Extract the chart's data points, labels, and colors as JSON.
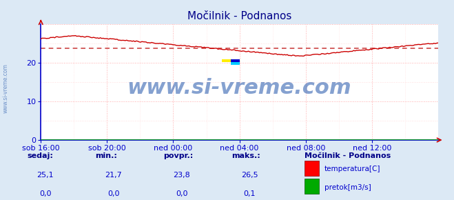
{
  "title": "Močilnik - Podnanos",
  "bg_color": "#dce9f5",
  "plot_bg_color": "#ffffff",
  "grid_color": "#ffaaaa",
  "grid_minor_color": "#ffdddd",
  "spine_color": "#0000cc",
  "x_labels": [
    "sob 16:00",
    "sob 20:00",
    "ned 00:00",
    "ned 04:00",
    "ned 08:00",
    "ned 12:00"
  ],
  "x_ticks_norm": [
    0.0,
    0.1667,
    0.3333,
    0.5,
    0.6667,
    0.8333
  ],
  "ylim": [
    0,
    30
  ],
  "yticks": [
    0,
    10,
    20
  ],
  "avg_line": 23.8,
  "avg_line_color": "#cc4444",
  "avg_line_style": "dotted",
  "temp_color": "#cc0000",
  "flow_color": "#00aa00",
  "watermark": "www.si-vreme.com",
  "watermark_color": "#2255aa",
  "watermark_alpha": 0.55,
  "watermark_fontsize": 22,
  "title_color": "#000088",
  "title_fontsize": 11,
  "tick_color": "#0000cc",
  "tick_fontsize": 8,
  "legend_title": "Močilnik - Podnanos",
  "stats_labels": [
    "sedaj:",
    "min.:",
    "povpr.:",
    "maks.:"
  ],
  "stats_temp": [
    "25,1",
    "21,7",
    "23,8",
    "26,5"
  ],
  "stats_flow": [
    "0,0",
    "0,0",
    "0,0",
    "0,1"
  ],
  "n_points": 288
}
